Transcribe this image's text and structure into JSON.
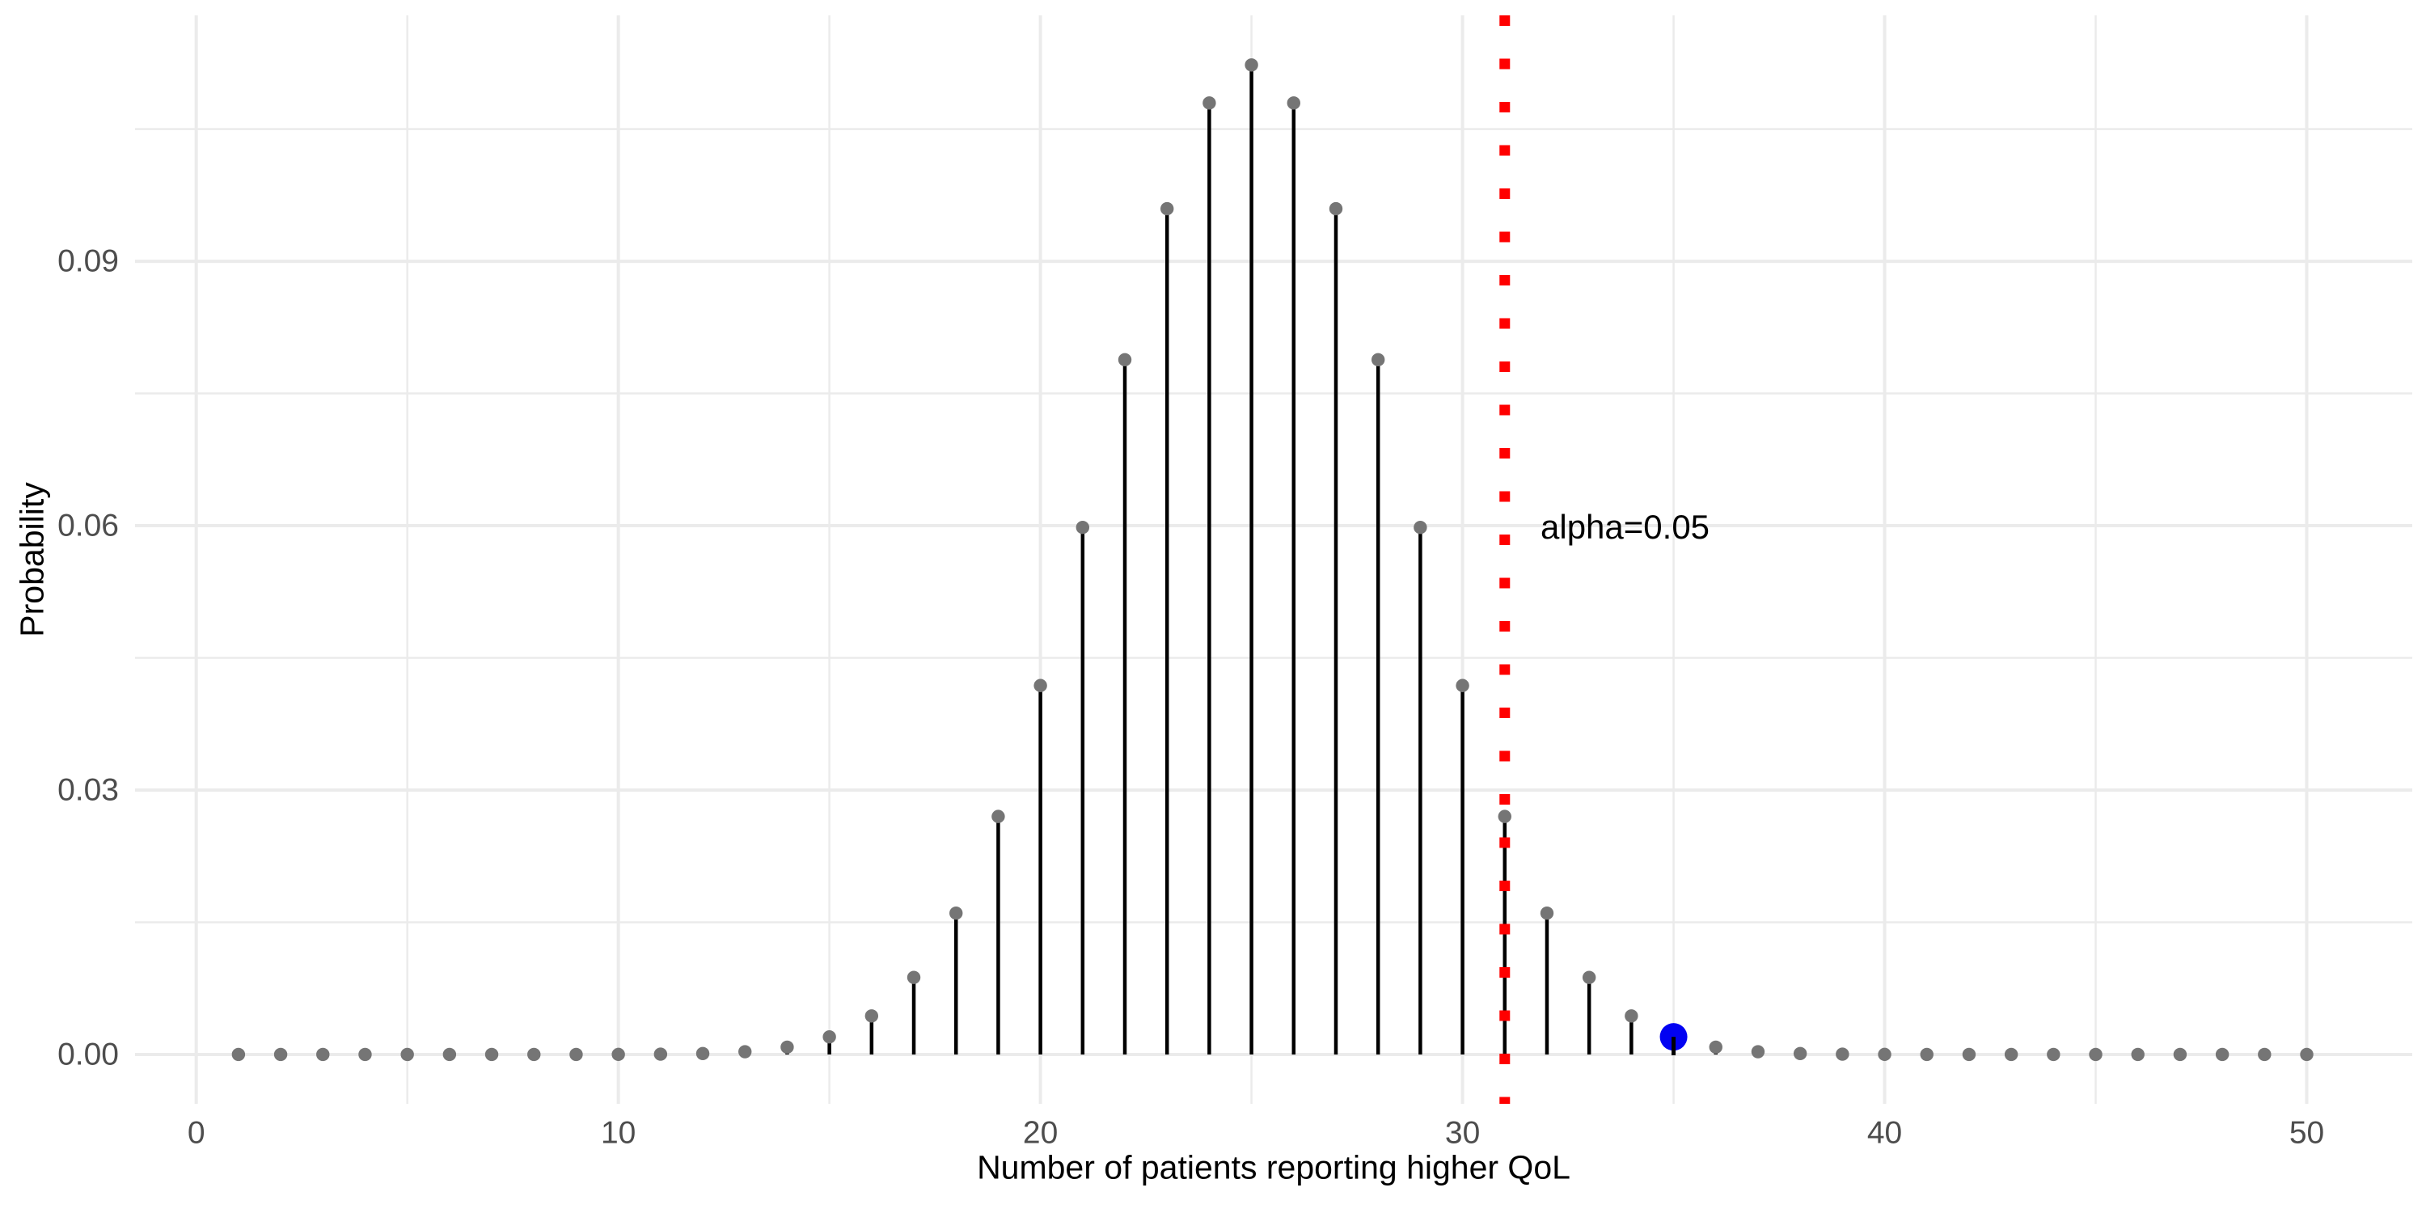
{
  "chart_data": {
    "type": "stem",
    "title": "",
    "xlabel": "Number of patients reporting higher QoL",
    "ylabel": "Probability",
    "x": [
      1,
      2,
      3,
      4,
      5,
      6,
      7,
      8,
      9,
      10,
      11,
      12,
      13,
      14,
      15,
      16,
      17,
      18,
      19,
      20,
      21,
      22,
      23,
      24,
      25,
      26,
      27,
      28,
      29,
      30,
      31,
      32,
      33,
      34,
      35,
      36,
      37,
      38,
      39,
      40,
      41,
      42,
      43,
      44,
      45,
      46,
      47,
      48,
      49,
      50
    ],
    "probabilities": [
      0,
      0,
      0,
      0,
      0,
      0,
      1e-07,
      5e-07,
      2.2e-06,
      9.1e-06,
      3.32e-05,
      0.0001078,
      0.0003152,
      0.000833,
      0.0019992,
      0.0043731,
      0.0087462,
      0.0160348,
      0.027006,
      0.0418595,
      0.0598003,
      0.0788269,
      0.0959617,
      0.1079582,
      0.1122752,
      0.1079582,
      0.0959617,
      0.0788269,
      0.0598003,
      0.0418595,
      0.027006,
      0.0160348,
      0.0087462,
      0.0043731,
      0.0019992,
      0.000833,
      0.0003152,
      0.0001078,
      3.32e-05,
      9.1e-06,
      2.2e-06,
      5e-07,
      1e-07,
      0,
      0,
      0,
      0,
      0,
      0,
      0
    ],
    "x_ticks": [
      0,
      10,
      20,
      30,
      40,
      50
    ],
    "x_minor_ticks": [
      5,
      15,
      25,
      35,
      45
    ],
    "y_ticks": [
      0,
      0.03,
      0.06,
      0.09
    ],
    "y_tick_labels": [
      "0.00",
      "0.03",
      "0.06",
      "0.09"
    ],
    "y_minor_ticks": [
      0.015,
      0.045,
      0.075,
      0.105
    ],
    "xlim": [
      -1.45,
      52.5
    ],
    "ylim": [
      -0.0056,
      0.1179
    ],
    "grid": "major and minor, no axis lines",
    "legend": "none",
    "annotations": {
      "vline": {
        "x": 31,
        "style": "dotted",
        "label": "alpha=0.05"
      },
      "highlight_point": {
        "x": 35,
        "y": 0.002
      }
    }
  },
  "style": {
    "background_color": "#FFFFFF",
    "grid_color": "#EBEBEB",
    "stem_color": "#000000",
    "point_color": "#757575",
    "highlight_point_color": "#0202F2",
    "vline_color": "#FF0000",
    "tick_label_color": "#4D4D4D",
    "axis_title_color": "#000000",
    "annotation_text_color": "#000000"
  }
}
